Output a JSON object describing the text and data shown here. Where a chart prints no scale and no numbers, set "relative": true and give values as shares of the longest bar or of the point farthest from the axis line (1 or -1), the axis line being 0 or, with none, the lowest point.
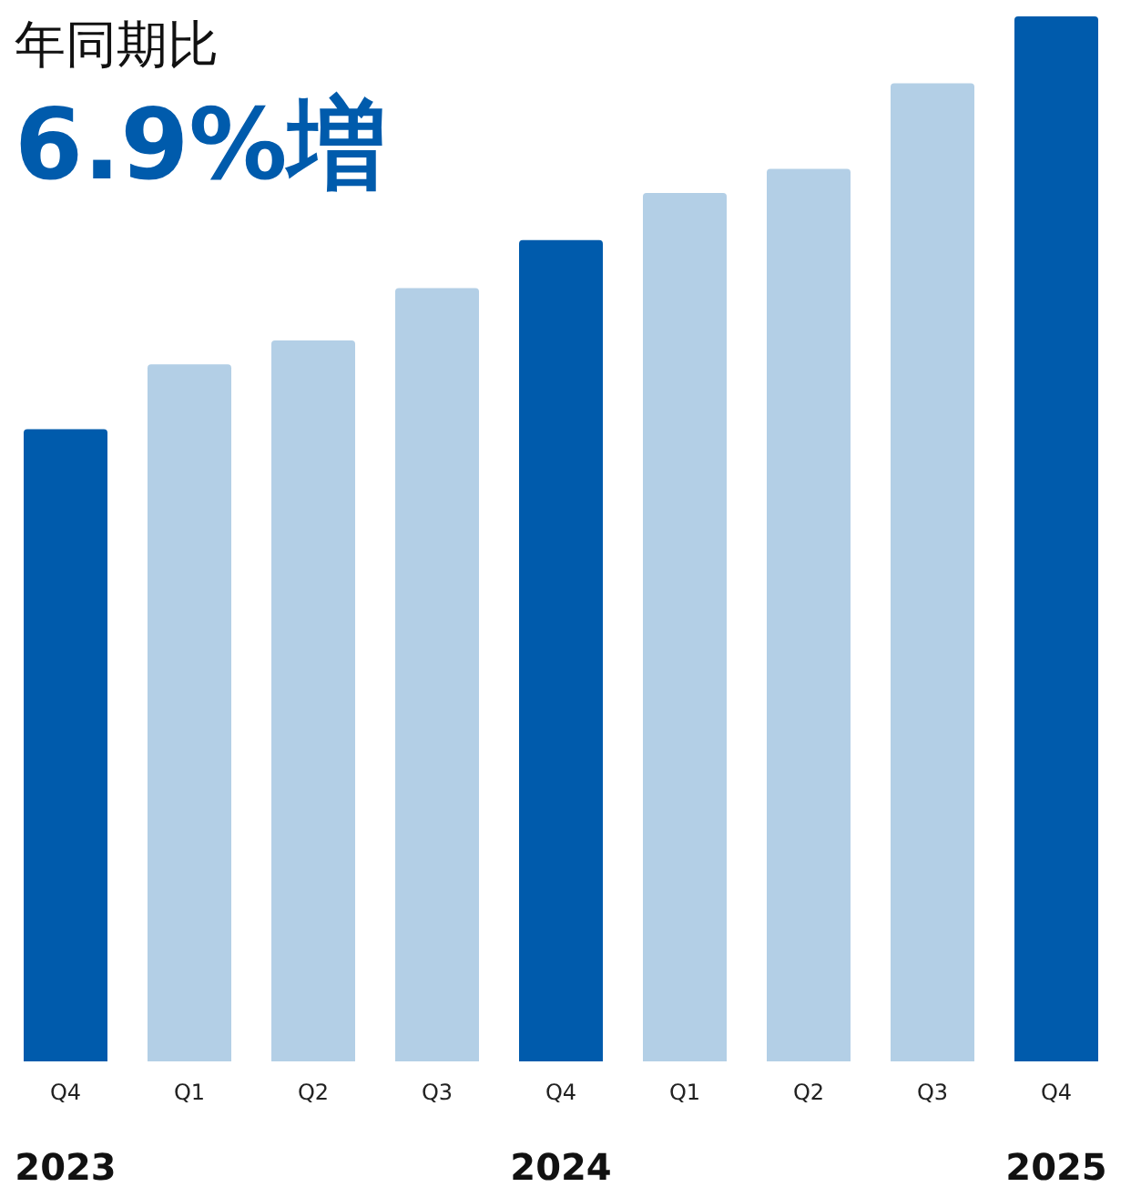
{
  "chart_data": {
    "type": "bar",
    "relative": true,
    "title": "年同期比",
    "subtitle": "6.9%増",
    "categories": [
      "Q4",
      "Q1",
      "Q2",
      "Q3",
      "Q4",
      "Q1",
      "Q2",
      "Q3",
      "Q4"
    ],
    "values": [
      0.605,
      0.667,
      0.69,
      0.74,
      0.786,
      0.831,
      0.854,
      0.936,
      1
    ],
    "colors": [
      "#005bac",
      "#b3cfe6",
      "#b3cfe6",
      "#b3cfe6",
      "#005bac",
      "#b3cfe6",
      "#b3cfe6",
      "#b3cfe6",
      "#005bac"
    ],
    "annotations": [
      "2023",
      "2024",
      "2025"
    ]
  }
}
